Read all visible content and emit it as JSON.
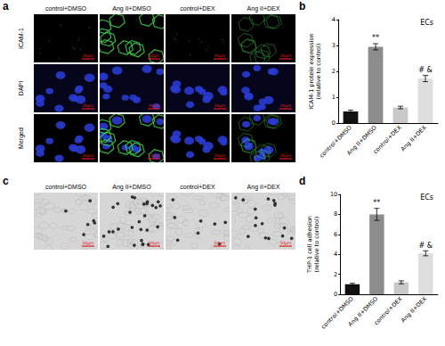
{
  "panels": {
    "a": {
      "letter": "a",
      "columns": [
        "control+DMSO",
        "Ang II+DMSO",
        "control+DEX",
        "Ang II+DEX"
      ],
      "rows": [
        "ICAM-1",
        "DAPI",
        "Merged"
      ],
      "scale_bar": "20μm"
    },
    "c": {
      "letter": "c",
      "columns": [
        "control+DMSO",
        "Ang II+DMSO",
        "control+DEX",
        "Ang II+DEX"
      ],
      "scale_bar": "50μm"
    }
  },
  "chart_data": [
    {
      "letter": "b",
      "type": "bar",
      "title": "ECs",
      "y_label": "ICAM-1 protein expression\n(relative to control)",
      "categories": [
        "control+DMSO",
        "Ang II+DMSO",
        "control+DEX",
        "Ang II+DEX"
      ],
      "values": [
        0.45,
        2.95,
        0.6,
        1.72
      ],
      "errors": [
        0.05,
        0.12,
        0.05,
        0.12
      ],
      "annotations": [
        null,
        "**",
        null,
        "# &"
      ],
      "colors": [
        "#111111",
        "#8c8c8c",
        "#c8c8c8",
        "#dedede"
      ],
      "ylim": [
        0,
        4
      ],
      "yticks": [
        0,
        1,
        2,
        3,
        4
      ]
    },
    {
      "letter": "d",
      "type": "bar",
      "title": "ECs",
      "y_label": "THP-1 cell adhesion\n(relative to control)",
      "categories": [
        "control+DMSO",
        "Ang II+DMSO",
        "control+DEX",
        "Ang II+DEX"
      ],
      "values": [
        1.0,
        8.0,
        1.2,
        4.1
      ],
      "errors": [
        0.1,
        0.6,
        0.15,
        0.25
      ],
      "annotations": [
        null,
        "**",
        null,
        "# &"
      ],
      "colors": [
        "#111111",
        "#8c8c8c",
        "#c8c8c8",
        "#dedede"
      ],
      "ylim": [
        0,
        10
      ],
      "yticks": [
        0,
        2,
        4,
        6,
        8,
        10
      ]
    }
  ]
}
